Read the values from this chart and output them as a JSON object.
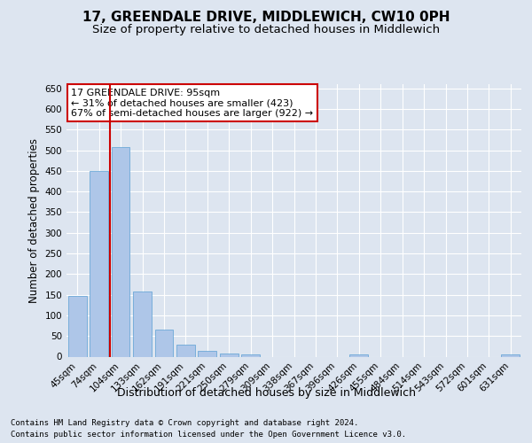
{
  "title": "17, GREENDALE DRIVE, MIDDLEWICH, CW10 0PH",
  "subtitle": "Size of property relative to detached houses in Middlewich",
  "xlabel": "Distribution of detached houses by size in Middlewich",
  "ylabel": "Number of detached properties",
  "categories": [
    "45sqm",
    "74sqm",
    "104sqm",
    "133sqm",
    "162sqm",
    "191sqm",
    "221sqm",
    "250sqm",
    "279sqm",
    "309sqm",
    "338sqm",
    "367sqm",
    "396sqm",
    "426sqm",
    "455sqm",
    "484sqm",
    "514sqm",
    "543sqm",
    "572sqm",
    "601sqm",
    "631sqm"
  ],
  "values": [
    147,
    450,
    507,
    158,
    65,
    30,
    14,
    8,
    5,
    0,
    0,
    0,
    0,
    5,
    0,
    0,
    0,
    0,
    0,
    0,
    5
  ],
  "bar_color": "#aec6e8",
  "bar_edge_color": "#5a9fd4",
  "background_color": "#dde5f0",
  "plot_bg_color": "#dde5f0",
  "grid_color": "#ffffff",
  "annotation_box_text": "17 GREENDALE DRIVE: 95sqm\n← 31% of detached houses are smaller (423)\n67% of semi-detached houses are larger (922) →",
  "annotation_box_color": "#ffffff",
  "annotation_box_edge_color": "#cc0000",
  "vline_x": 1.5,
  "vline_color": "#cc0000",
  "ylim": [
    0,
    660
  ],
  "yticks": [
    0,
    50,
    100,
    150,
    200,
    250,
    300,
    350,
    400,
    450,
    500,
    550,
    600,
    650
  ],
  "footer_line1": "Contains HM Land Registry data © Crown copyright and database right 2024.",
  "footer_line2": "Contains public sector information licensed under the Open Government Licence v3.0.",
  "title_fontsize": 11,
  "subtitle_fontsize": 9.5,
  "xlabel_fontsize": 9,
  "ylabel_fontsize": 8.5,
  "tick_fontsize": 7.5,
  "annotation_fontsize": 8
}
